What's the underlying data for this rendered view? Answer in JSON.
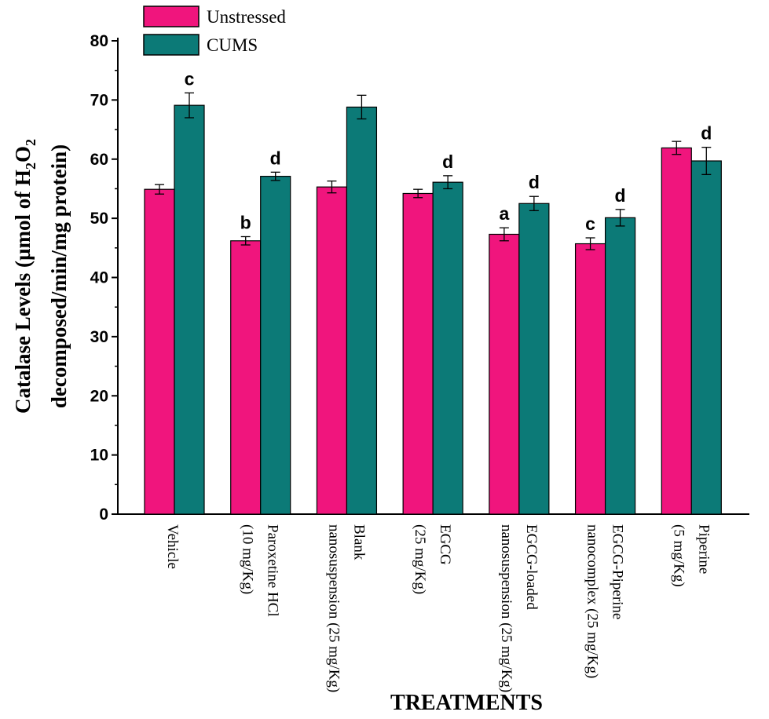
{
  "chart_data": {
    "type": "bar",
    "ylabel_line1": "Catalase Levels (µmol of H",
    "ylabel_sub1": "2",
    "ylabel_mid": "O",
    "ylabel_sub2": "2",
    "ylabel_line2": "decomposed/min/mg protein)",
    "xlabel": "TREATMENTS",
    "ylim": [
      0,
      80
    ],
    "yticks": [
      "0",
      "10",
      "20",
      "30",
      "40",
      "50",
      "60",
      "70",
      "80"
    ],
    "categories": [
      {
        "line1": "Vehicle",
        "line2": ""
      },
      {
        "line1": "Paroxetine HCl",
        "line2": "(10 mg/Kg)"
      },
      {
        "line1": "Blank",
        "line2": "nanosuspension (25 mg/Kg)"
      },
      {
        "line1": "EGCG",
        "line2": "(25 mg/Kg)"
      },
      {
        "line1": "EGCG-loaded",
        "line2": "nanosuspension (25 mg/Kg)"
      },
      {
        "line1": "EGCG-Piperine",
        "line2": "nanocomplex (25 mg/Kg)"
      },
      {
        "line1": "Piperine",
        "line2": "(5 mg/Kg)"
      }
    ],
    "series": [
      {
        "name": "Unstressed",
        "color": "#f0157d",
        "values": [
          54.9,
          46.2,
          55.3,
          54.2,
          47.3,
          45.7,
          61.9
        ],
        "errors": [
          0.8,
          0.7,
          1.0,
          0.7,
          1.1,
          1.0,
          1.1
        ],
        "letters": [
          "",
          "b",
          "",
          "",
          "a",
          "c",
          ""
        ]
      },
      {
        "name": "CUMS",
        "color": "#0c7a77",
        "values": [
          69.1,
          57.1,
          68.8,
          56.1,
          52.5,
          50.1,
          59.7
        ],
        "errors": [
          2.1,
          0.7,
          2.0,
          1.1,
          1.2,
          1.4,
          2.3
        ],
        "letters": [
          "c",
          "d",
          "",
          "d",
          "d",
          "d",
          "d"
        ]
      }
    ],
    "legend_position": "top-left",
    "grid": false
  }
}
